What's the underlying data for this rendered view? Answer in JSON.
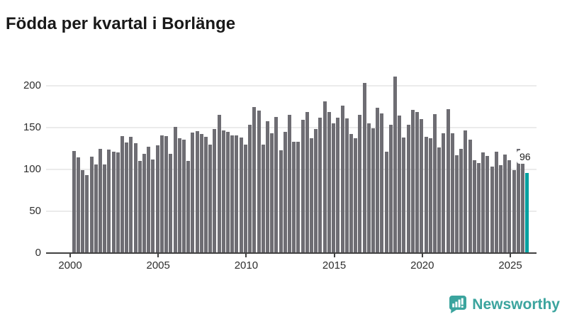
{
  "title": "Födda per kvartal i Borlänge",
  "annotation": {
    "last_value_label": "96"
  },
  "logo": {
    "text": "Newsworthy",
    "icon": "newsworthy-speech-bubble-chart-icon"
  },
  "colors": {
    "bar": "#6e6d73",
    "highlight": "#00a0a0",
    "axis": "#414141",
    "grid": "#ebebeb",
    "title": "#191919",
    "tick_text": "#2e2e2e",
    "callout_bg": "#ffffff",
    "callout_text": "#1f1f1f",
    "logo_teal": "#3ba49e"
  },
  "chart_data": {
    "type": "bar",
    "title": "Födda per kvartal i Borlänge",
    "xlabel": "",
    "ylabel": "",
    "ylim": [
      0,
      215
    ],
    "y_ticks": [
      0,
      50,
      100,
      150,
      200
    ],
    "x_ticks": [
      "2000",
      "2005",
      "2010",
      "2015",
      "2020",
      "2025"
    ],
    "grid": true,
    "legend": false,
    "highlight_index": 103,
    "highlight_value_label": "96",
    "x": [
      "2000-Q1",
      "2000-Q2",
      "2000-Q3",
      "2000-Q4",
      "2001-Q1",
      "2001-Q2",
      "2001-Q3",
      "2001-Q4",
      "2002-Q1",
      "2002-Q2",
      "2002-Q3",
      "2002-Q4",
      "2003-Q1",
      "2003-Q2",
      "2003-Q3",
      "2003-Q4",
      "2004-Q1",
      "2004-Q2",
      "2004-Q3",
      "2004-Q4",
      "2005-Q1",
      "2005-Q2",
      "2005-Q3",
      "2005-Q4",
      "2006-Q1",
      "2006-Q2",
      "2006-Q3",
      "2006-Q4",
      "2007-Q1",
      "2007-Q2",
      "2007-Q3",
      "2007-Q4",
      "2008-Q1",
      "2008-Q2",
      "2008-Q3",
      "2008-Q4",
      "2009-Q1",
      "2009-Q2",
      "2009-Q3",
      "2009-Q4",
      "2010-Q1",
      "2010-Q2",
      "2010-Q3",
      "2010-Q4",
      "2011-Q1",
      "2011-Q2",
      "2011-Q3",
      "2011-Q4",
      "2012-Q1",
      "2012-Q2",
      "2012-Q3",
      "2012-Q4",
      "2013-Q1",
      "2013-Q2",
      "2013-Q3",
      "2013-Q4",
      "2014-Q1",
      "2014-Q2",
      "2014-Q3",
      "2014-Q4",
      "2015-Q1",
      "2015-Q2",
      "2015-Q3",
      "2015-Q4",
      "2016-Q1",
      "2016-Q2",
      "2016-Q3",
      "2016-Q4",
      "2017-Q1",
      "2017-Q2",
      "2017-Q3",
      "2017-Q4",
      "2018-Q1",
      "2018-Q2",
      "2018-Q3",
      "2018-Q4",
      "2019-Q1",
      "2019-Q2",
      "2019-Q3",
      "2019-Q4",
      "2020-Q1",
      "2020-Q2",
      "2020-Q3",
      "2020-Q4",
      "2021-Q1",
      "2021-Q2",
      "2021-Q3",
      "2021-Q4",
      "2022-Q1",
      "2022-Q2",
      "2022-Q3",
      "2022-Q4",
      "2023-Q1",
      "2023-Q2",
      "2023-Q3",
      "2023-Q4",
      "2024-Q1",
      "2024-Q2",
      "2024-Q3",
      "2024-Q4",
      "2025-Q1",
      "2025-Q2",
      "2025-Q3",
      "2025-Q4"
    ],
    "values": [
      122,
      114,
      99,
      93,
      115,
      106,
      125,
      106,
      124,
      121,
      120,
      140,
      132,
      139,
      131,
      110,
      119,
      127,
      112,
      129,
      141,
      140,
      119,
      151,
      137,
      136,
      110,
      144,
      146,
      142,
      139,
      130,
      148,
      165,
      147,
      145,
      141,
      141,
      138,
      130,
      153,
      175,
      170,
      130,
      158,
      143,
      163,
      123,
      145,
      165,
      133,
      133,
      159,
      169,
      137,
      148,
      162,
      181,
      169,
      155,
      162,
      176,
      161,
      142,
      137,
      165,
      203,
      155,
      149,
      174,
      167,
      121,
      153,
      211,
      164,
      138,
      153,
      171,
      169,
      160,
      139,
      137,
      166,
      126,
      143,
      172,
      143,
      117,
      125,
      147,
      136,
      111,
      108,
      120,
      116,
      103,
      121,
      105,
      118,
      111,
      99,
      125,
      108,
      96
    ]
  }
}
